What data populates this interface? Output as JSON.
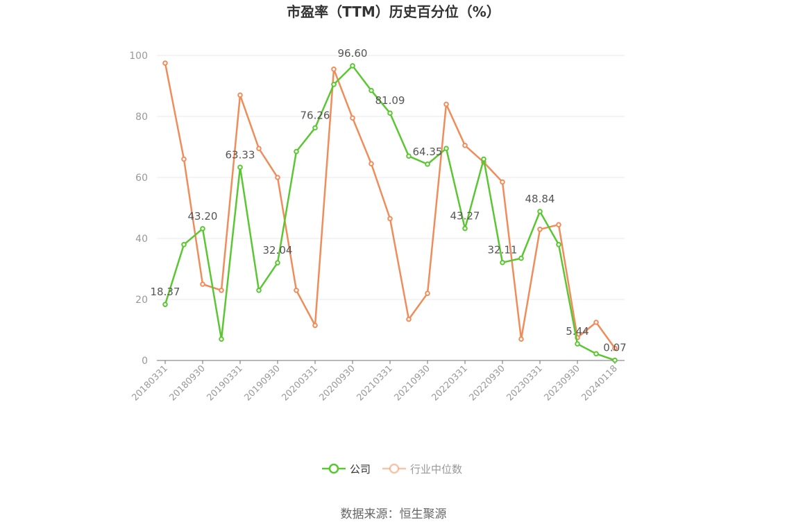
{
  "chart_data": {
    "type": "line",
    "title": "市盈率（TTM）历史百分位（%）",
    "source": "数据来源：恒生聚源",
    "ylim": [
      0,
      100
    ],
    "yticks": [
      "0",
      "20",
      "40",
      "60",
      "80",
      "100"
    ],
    "x": [
      "20180331",
      "20180630",
      "20180930",
      "20181231",
      "20190331",
      "20190630",
      "20190930",
      "20191231",
      "20200331",
      "20200630",
      "20200930",
      "20201231",
      "20210331",
      "20210630",
      "20210930",
      "20211231",
      "20220331",
      "20220630",
      "20220930",
      "20221231",
      "20230331",
      "20230630",
      "20230930",
      "20231231",
      "20240118"
    ],
    "x_tick_labels": [
      "20180331",
      "20180930",
      "20190331",
      "20190930",
      "20200331",
      "20200930",
      "20210331",
      "20210930",
      "20220331",
      "20220930",
      "20230331",
      "20230930",
      "20240118"
    ],
    "grid": true,
    "legend_position": "bottom",
    "series": [
      {
        "name": "公司",
        "color": "#5ac732",
        "values": [
          18.37,
          38.0,
          43.2,
          7.0,
          63.33,
          23.0,
          32.04,
          68.5,
          76.26,
          90.5,
          96.6,
          88.5,
          81.09,
          67.0,
          64.35,
          69.5,
          43.27,
          66.0,
          32.11,
          33.5,
          48.84,
          38.0,
          5.44,
          2.2,
          0.07
        ],
        "labels": [
          "18.37",
          "",
          "43.20",
          "",
          "63.33",
          "",
          "32.04",
          "",
          "76.26",
          "",
          "96.60",
          "",
          "81.09",
          "",
          "64.35",
          "",
          "43.27",
          "",
          "32.11",
          "",
          "48.84",
          "",
          "5.44",
          "",
          "0.07"
        ]
      },
      {
        "name": "行业中位数",
        "color": "#f08c5a",
        "values": [
          97.5,
          66.0,
          25.0,
          23.0,
          87.0,
          69.5,
          60.0,
          23.0,
          11.5,
          95.5,
          79.5,
          64.5,
          46.5,
          13.5,
          22.0,
          84.0,
          70.5,
          65.0,
          58.5,
          7.0,
          43.0,
          44.5,
          7.5,
          12.5,
          4.0
        ]
      }
    ]
  }
}
